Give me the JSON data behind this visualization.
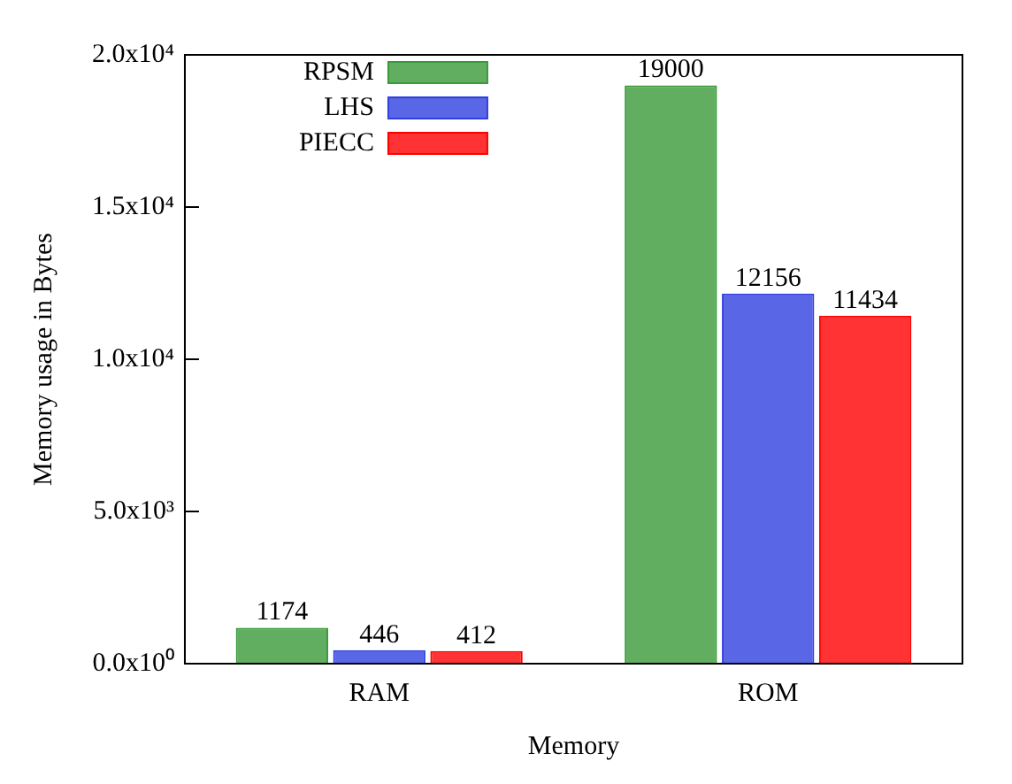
{
  "chart_data": {
    "type": "bar",
    "xlabel": "Memory",
    "ylabel": "Memory usage in Bytes",
    "categories": [
      "RAM",
      "ROM"
    ],
    "series": [
      {
        "name": "RPSM",
        "color": "#3a9a3a",
        "values": [
          1174,
          19000
        ]
      },
      {
        "name": "LHS",
        "color": "#3040e0",
        "values": [
          446,
          12156
        ]
      },
      {
        "name": "PIECC",
        "color": "#ff0000",
        "values": [
          412,
          11434
        ]
      }
    ],
    "ylim": [
      0,
      20000
    ],
    "yticks": [
      {
        "value": 0,
        "label": "0.0x10⁰"
      },
      {
        "value": 5000,
        "label": "5.0x10³"
      },
      {
        "value": 10000,
        "label": "1.0x10⁴"
      },
      {
        "value": 15000,
        "label": "1.5x10⁴"
      },
      {
        "value": 20000,
        "label": "2.0x10⁴"
      }
    ],
    "data_labels": true,
    "legend": "top left",
    "grid": false
  }
}
